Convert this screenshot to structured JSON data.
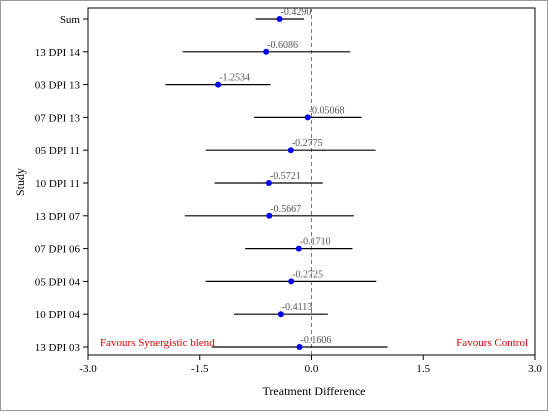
{
  "colors": {
    "point": "#0000ee",
    "ci_line": "#000000",
    "zero_line": "#777777",
    "favour_text": "#dd0000",
    "value_label": "#555555"
  },
  "chart_data": {
    "type": "forest",
    "xlabel": "Treatment Difference",
    "ylabel": "Study",
    "xlim": [
      -3.0,
      3.0
    ],
    "xticks": [
      "-3.0",
      "-1.5",
      "0.0",
      "1.5",
      "3.0"
    ],
    "reference_line": 0,
    "favours_left": "Favours Synergistic blend",
    "favours_right": "Favours Control",
    "rows": [
      {
        "study": "Sum",
        "estimate": -0.429,
        "label": "-0.4290",
        "lower": -0.75,
        "upper": -0.1
      },
      {
        "study": "13 DPI 14",
        "estimate": -0.6086,
        "label": "-0.6086",
        "lower": -1.73,
        "upper": 0.52
      },
      {
        "study": "03 DPI 13",
        "estimate": -1.2534,
        "label": "-1.2534",
        "lower": -1.96,
        "upper": -0.55
      },
      {
        "study": "07 DPI 13",
        "estimate": -0.05068,
        "label": "-0.05068",
        "lower": -0.77,
        "upper": 0.67
      },
      {
        "study": "05 DPI 11",
        "estimate": -0.2775,
        "label": "-0.2775",
        "lower": -1.42,
        "upper": 0.86
      },
      {
        "study": "10 DPI 11",
        "estimate": -0.5721,
        "label": "-0.5721",
        "lower": -1.3,
        "upper": 0.15
      },
      {
        "study": "13 DPI 07",
        "estimate": -0.5667,
        "label": "-0.5667",
        "lower": -1.7,
        "upper": 0.57
      },
      {
        "study": "07 DPI 06",
        "estimate": -0.171,
        "label": "-0.1710",
        "lower": -0.89,
        "upper": 0.55
      },
      {
        "study": "05 DPI 04",
        "estimate": -0.2725,
        "label": "-0.2725",
        "lower": -1.42,
        "upper": 0.87
      },
      {
        "study": "10 DPI 04",
        "estimate": -0.4113,
        "label": "-0.4113",
        "lower": -1.04,
        "upper": 0.22
      },
      {
        "study": "13 DPI 03",
        "estimate": -0.1606,
        "label": "-0.1606",
        "lower": -1.34,
        "upper": 1.02
      }
    ]
  }
}
